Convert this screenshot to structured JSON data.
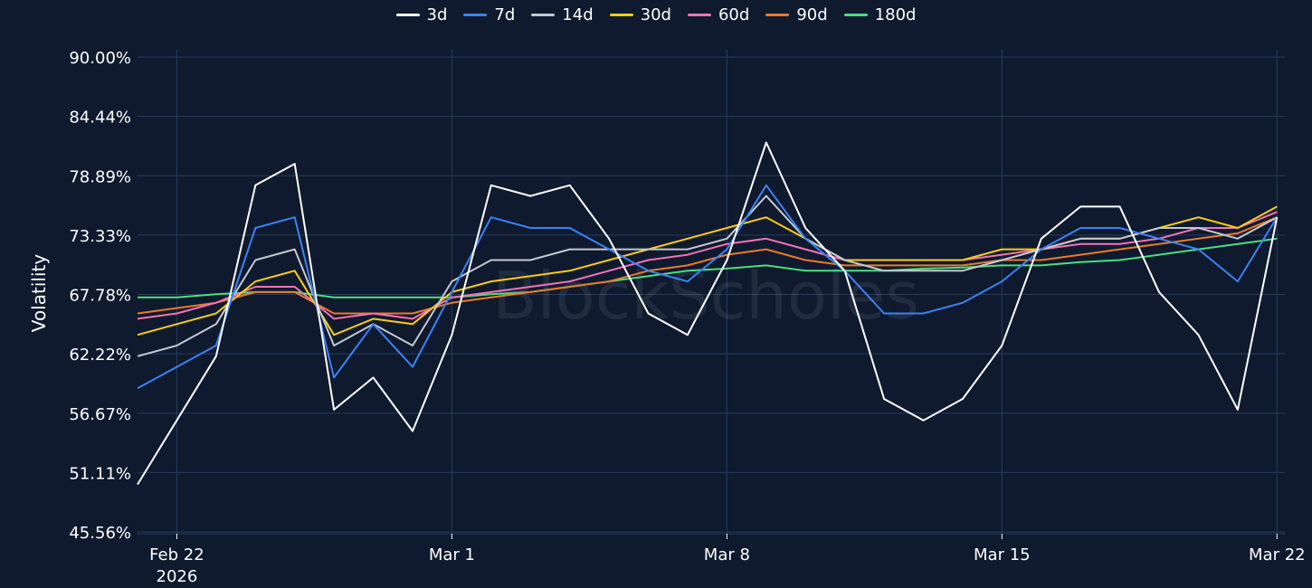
{
  "chart_data": {
    "type": "line",
    "ylabel": "Volatility",
    "watermark": "BlockScholes",
    "x_ticks": [
      {
        "date": "2026-02-22",
        "label": "Feb 22",
        "sublabel": "2026"
      },
      {
        "date": "2026-03-01",
        "label": "Mar 1"
      },
      {
        "date": "2026-03-08",
        "label": "Mar 8"
      },
      {
        "date": "2026-03-15",
        "label": "Mar 15"
      },
      {
        "date": "2026-03-22",
        "label": "Mar 22"
      }
    ],
    "y_ticks": [
      "45.56%",
      "51.11%",
      "56.67%",
      "62.22%",
      "67.78%",
      "73.33%",
      "78.89%",
      "84.44%",
      "90.00%"
    ],
    "y_tick_values": [
      45.56,
      51.11,
      56.67,
      62.22,
      67.78,
      73.33,
      78.89,
      84.44,
      90.0
    ],
    "xlim": [
      "2026-02-21",
      "2026-03-22"
    ],
    "ylim": [
      45.56,
      90.0
    ],
    "grid": true,
    "legend_position": "top-center",
    "x": [
      "2026-02-21",
      "2026-02-22",
      "2026-02-23",
      "2026-02-24",
      "2026-02-25",
      "2026-02-26",
      "2026-02-27",
      "2026-02-28",
      "2026-03-01",
      "2026-03-02",
      "2026-03-03",
      "2026-03-04",
      "2026-03-05",
      "2026-03-06",
      "2026-03-07",
      "2026-03-08",
      "2026-03-09",
      "2026-03-10",
      "2026-03-11",
      "2026-03-12",
      "2026-03-13",
      "2026-03-14",
      "2026-03-15",
      "2026-03-16",
      "2026-03-17",
      "2026-03-18",
      "2026-03-19",
      "2026-03-20",
      "2026-03-21",
      "2026-03-22"
    ],
    "series": [
      {
        "name": "3d",
        "color": "#ffffff",
        "values": [
          50.0,
          56.0,
          62.0,
          78.0,
          80.0,
          57.0,
          60.0,
          55.0,
          64.0,
          78.0,
          77.0,
          78.0,
          73.0,
          66.0,
          64.0,
          71.0,
          82.0,
          74.0,
          70.0,
          58.0,
          56.0,
          58.0,
          63.0,
          73.0,
          76.0,
          76.0,
          68.0,
          64.0,
          57.0,
          75.0
        ]
      },
      {
        "name": "7d",
        "color": "#3b82f6",
        "values": [
          59.0,
          61.0,
          63.0,
          74.0,
          75.0,
          60.0,
          65.0,
          61.0,
          68.0,
          75.0,
          74.0,
          74.0,
          72.0,
          70.0,
          69.0,
          72.0,
          78.0,
          73.0,
          70.0,
          66.0,
          66.0,
          67.0,
          69.0,
          72.0,
          74.0,
          74.0,
          73.0,
          72.0,
          69.0,
          75.0
        ]
      },
      {
        "name": "14d",
        "color": "#c4c8d0",
        "values": [
          62.0,
          63.0,
          65.0,
          71.0,
          72.0,
          63.0,
          65.0,
          63.0,
          69.0,
          71.0,
          71.0,
          72.0,
          72.0,
          72.0,
          72.0,
          73.0,
          77.0,
          73.0,
          71.0,
          70.0,
          70.0,
          70.0,
          71.0,
          72.0,
          73.0,
          73.0,
          74.0,
          74.0,
          73.0,
          75.0
        ]
      },
      {
        "name": "30d",
        "color": "#facc15",
        "values": [
          64.0,
          65.0,
          66.0,
          69.0,
          70.0,
          64.0,
          65.5,
          65.0,
          68.0,
          69.0,
          69.5,
          70.0,
          71.0,
          72.0,
          73.0,
          74.0,
          75.0,
          73.0,
          71.0,
          71.0,
          71.0,
          71.0,
          72.0,
          72.0,
          73.0,
          73.0,
          74.0,
          75.0,
          74.0,
          76.0
        ]
      },
      {
        "name": "60d",
        "color": "#f472b6",
        "values": [
          65.5,
          66.0,
          67.0,
          68.5,
          68.5,
          65.5,
          66.0,
          65.5,
          67.5,
          68.0,
          68.5,
          69.0,
          70.0,
          71.0,
          71.5,
          72.5,
          73.0,
          72.0,
          71.0,
          71.0,
          71.0,
          71.0,
          71.5,
          72.0,
          72.5,
          72.5,
          73.0,
          74.0,
          74.0,
          75.5
        ]
      },
      {
        "name": "90d",
        "color": "#ea7a2a",
        "values": [
          66.0,
          66.5,
          67.0,
          68.0,
          68.0,
          66.0,
          66.0,
          66.0,
          67.0,
          67.5,
          68.0,
          68.5,
          69.0,
          70.0,
          70.5,
          71.5,
          72.0,
          71.0,
          70.5,
          70.5,
          70.5,
          70.5,
          71.0,
          71.0,
          71.5,
          72.0,
          72.5,
          73.0,
          73.5,
          75.0
        ]
      },
      {
        "name": "180d",
        "color": "#4ade80",
        "values": [
          67.5,
          67.5,
          67.8,
          68.0,
          68.0,
          67.5,
          67.5,
          67.5,
          67.5,
          67.8,
          68.0,
          68.5,
          69.0,
          69.5,
          70.0,
          70.2,
          70.5,
          70.0,
          70.0,
          70.0,
          70.2,
          70.3,
          70.5,
          70.5,
          70.8,
          71.0,
          71.5,
          72.0,
          72.5,
          73.0
        ]
      }
    ]
  }
}
